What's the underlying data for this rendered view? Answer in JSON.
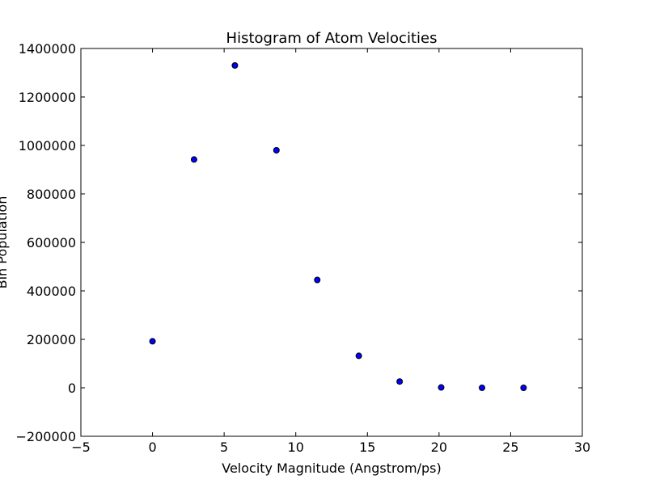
{
  "chart_data": {
    "type": "scatter",
    "title": "Histogram of Atom Velocities",
    "xlabel": "Velocity Magnitude (Angstrom/ps)",
    "ylabel": "Bin Population",
    "xlim": [
      -5,
      30
    ],
    "ylim": [
      -200000,
      1400000
    ],
    "xticks": [
      -5,
      0,
      5,
      10,
      15,
      20,
      25,
      30
    ],
    "yticks": [
      -200000,
      0,
      200000,
      400000,
      600000,
      800000,
      1000000,
      1200000,
      1400000
    ],
    "xtick_labels": [
      "−5",
      "0",
      "5",
      "10",
      "15",
      "20",
      "25",
      "30"
    ],
    "ytick_labels": [
      "−200000",
      "0",
      "200000",
      "400000",
      "600000",
      "800000",
      "1000000",
      "1200000",
      "1400000"
    ],
    "grid": false,
    "marker_color": "#0000ff",
    "marker_edge_color": "#000000",
    "series": [
      {
        "x": [
          0.0,
          2.9,
          5.75,
          8.65,
          11.5,
          14.4,
          17.25,
          20.15,
          23.0,
          25.9
        ],
        "y": [
          192000,
          942000,
          1330000,
          980000,
          445000,
          132000,
          26000,
          1500,
          200,
          0
        ]
      }
    ]
  }
}
